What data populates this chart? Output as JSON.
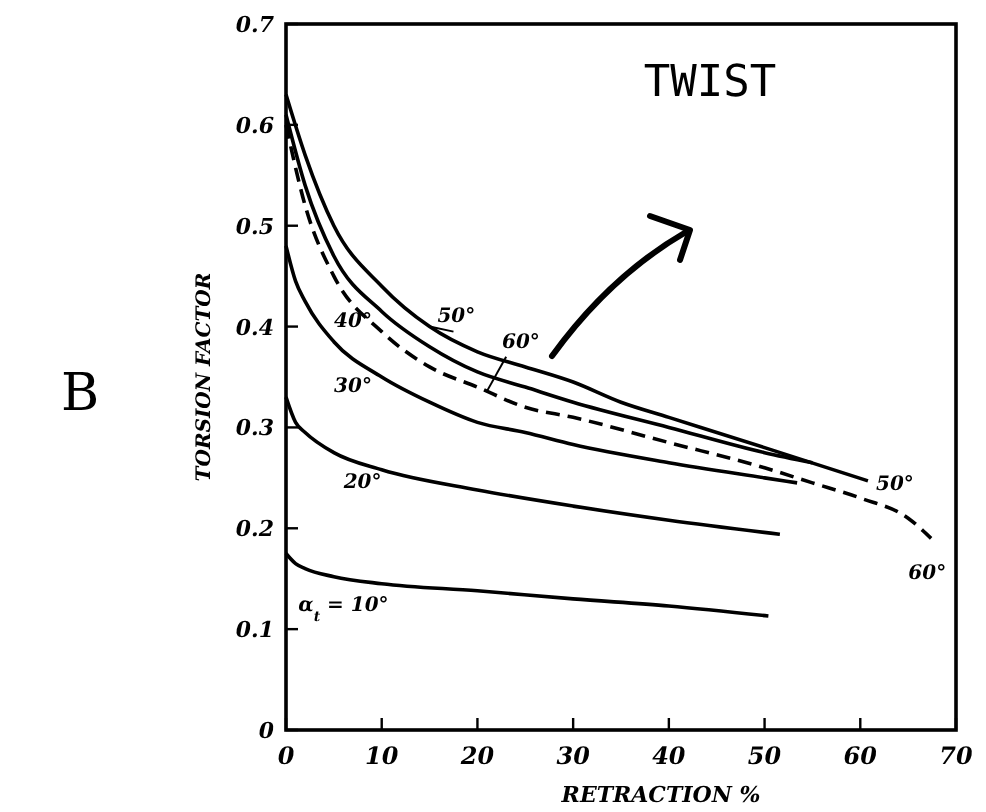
{
  "chart_data": {
    "type": "line",
    "xlabel": "RETRACTION %",
    "ylabel": "TORSION FACTOR",
    "xlim": [
      0,
      70
    ],
    "xticks": [
      0,
      10,
      20,
      30,
      40,
      50,
      60,
      70
    ],
    "ylim": [
      0,
      0.7
    ],
    "yticks": [
      0,
      0.1,
      0.2,
      0.3,
      0.4,
      0.5,
      0.6,
      0.7
    ],
    "grid": false,
    "series": [
      {
        "name": "α$_{t}$ = 10°",
        "color": "#000000",
        "line_style": "solid",
        "x": [
          0,
          1,
          2,
          5,
          10,
          20,
          30,
          40,
          50.4
        ],
        "values": [
          0.175,
          0.165,
          0.16,
          0.152,
          0.145,
          0.138,
          0.13,
          0.123,
          0.113
        ]
      },
      {
        "name": "20°",
        "color": "#000000",
        "line_style": "solid",
        "x": [
          0,
          1,
          2,
          5,
          10,
          20,
          30,
          40,
          51.6
        ],
        "values": [
          0.33,
          0.305,
          0.295,
          0.275,
          0.258,
          0.238,
          0.222,
          0.208,
          0.194
        ]
      },
      {
        "name": "30°",
        "color": "#000000",
        "line_style": "solid",
        "x": [
          0,
          1,
          2,
          5,
          10,
          15,
          20,
          25,
          30,
          40,
          50,
          53.4
        ],
        "values": [
          0.48,
          0.445,
          0.425,
          0.385,
          0.35,
          0.325,
          0.305,
          0.295,
          0.283,
          0.265,
          0.25,
          0.245
        ]
      },
      {
        "name": "40°",
        "color": "#000000",
        "line_style": "solid",
        "x": [
          0,
          2,
          5,
          10,
          15,
          20,
          25,
          30,
          40,
          50,
          55
        ],
        "values": [
          0.61,
          0.54,
          0.47,
          0.415,
          0.38,
          0.355,
          0.34,
          0.325,
          0.3,
          0.275,
          0.265
        ]
      },
      {
        "name": "50°",
        "color": "#000000",
        "line_style": "solid",
        "x": [
          0,
          2,
          5,
          10,
          15,
          20,
          25,
          30,
          35,
          40,
          50,
          60.8
        ],
        "values": [
          0.63,
          0.57,
          0.5,
          0.44,
          0.4,
          0.375,
          0.36,
          0.345,
          0.325,
          0.31,
          0.28,
          0.247
        ]
      },
      {
        "name": "60°",
        "color": "#000000",
        "line_style": "dashed",
        "x": [
          0,
          2,
          5,
          10,
          15,
          20,
          25,
          30,
          40,
          50,
          55,
          60,
          65,
          67.4
        ],
        "values": [
          0.6,
          0.52,
          0.45,
          0.395,
          0.36,
          0.34,
          0.32,
          0.31,
          0.285,
          0.26,
          0.245,
          0.23,
          0.21,
          0.19
        ]
      }
    ],
    "annotations": [
      "B",
      "50°",
      "60°",
      "TWIST"
    ]
  }
}
